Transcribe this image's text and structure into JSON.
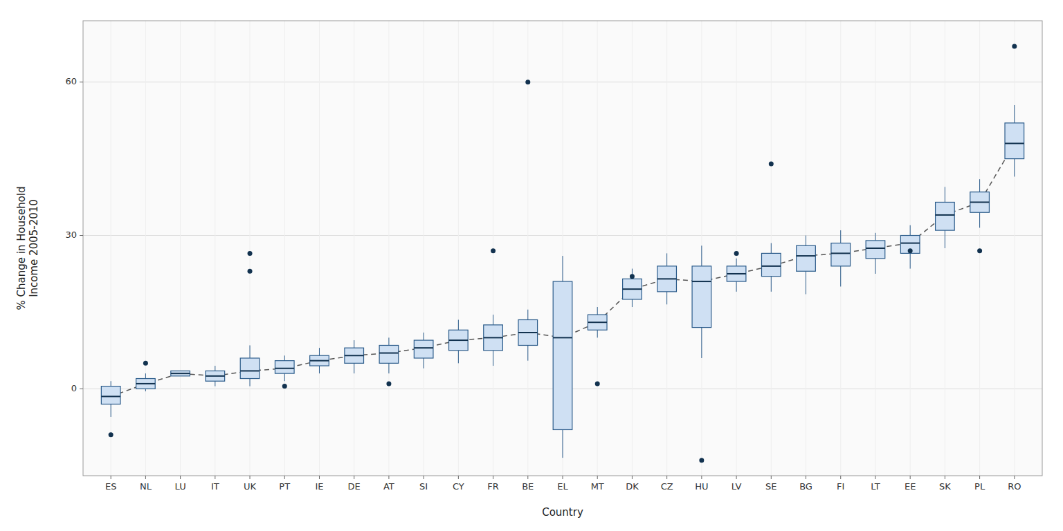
{
  "chart_data": {
    "type": "box",
    "xlabel": "Country",
    "ylabel": "% Change in Household\nIncome 2005-2010",
    "categories": [
      "ES",
      "NL",
      "LU",
      "IT",
      "UK",
      "PT",
      "IE",
      "DE",
      "AT",
      "SI",
      "CY",
      "FR",
      "BE",
      "EL",
      "MT",
      "DK",
      "CZ",
      "HU",
      "LV",
      "SE",
      "BG",
      "FI",
      "LT",
      "EE",
      "SK",
      "PL",
      "RO"
    ],
    "boxes": [
      {
        "q1": -3.0,
        "median": -1.5,
        "q3": 0.5,
        "whisker_low": -5.5,
        "whisker_high": 1.5,
        "outliers": [
          -9.0
        ]
      },
      {
        "q1": 0.0,
        "median": 1.0,
        "q3": 2.0,
        "whisker_low": -0.5,
        "whisker_high": 3.0,
        "outliers": [
          5.0
        ]
      },
      {
        "q1": 2.5,
        "median": 3.0,
        "q3": 3.5,
        "whisker_low": 2.5,
        "whisker_high": 3.5,
        "outliers": []
      },
      {
        "q1": 1.5,
        "median": 2.5,
        "q3": 3.5,
        "whisker_low": 0.5,
        "whisker_high": 4.5,
        "outliers": []
      },
      {
        "q1": 2.0,
        "median": 3.5,
        "q3": 6.0,
        "whisker_low": 0.5,
        "whisker_high": 8.5,
        "outliers": [
          26.5,
          23.0
        ]
      },
      {
        "q1": 3.0,
        "median": 4.0,
        "q3": 5.5,
        "whisker_low": 1.5,
        "whisker_high": 6.5,
        "outliers": [
          0.5
        ]
      },
      {
        "q1": 4.5,
        "median": 5.5,
        "q3": 6.5,
        "whisker_low": 3.0,
        "whisker_high": 8.0,
        "outliers": []
      },
      {
        "q1": 5.0,
        "median": 6.5,
        "q3": 8.0,
        "whisker_low": 3.0,
        "whisker_high": 9.5,
        "outliers": []
      },
      {
        "q1": 5.0,
        "median": 7.0,
        "q3": 8.5,
        "whisker_low": 3.0,
        "whisker_high": 10.0,
        "outliers": [
          1.0
        ]
      },
      {
        "q1": 6.0,
        "median": 8.0,
        "q3": 9.5,
        "whisker_low": 4.0,
        "whisker_high": 11.0,
        "outliers": []
      },
      {
        "q1": 7.5,
        "median": 9.5,
        "q3": 11.5,
        "whisker_low": 5.0,
        "whisker_high": 13.5,
        "outliers": []
      },
      {
        "q1": 7.5,
        "median": 10.0,
        "q3": 12.5,
        "whisker_low": 4.5,
        "whisker_high": 14.5,
        "outliers": [
          27.0
        ]
      },
      {
        "q1": 8.5,
        "median": 11.0,
        "q3": 13.5,
        "whisker_low": 5.5,
        "whisker_high": 15.5,
        "outliers": [
          60.0
        ]
      },
      {
        "q1": -8.0,
        "median": 10.0,
        "q3": 21.0,
        "whisker_low": -13.5,
        "whisker_high": 26.0,
        "outliers": []
      },
      {
        "q1": 11.5,
        "median": 13.0,
        "q3": 14.5,
        "whisker_low": 10.0,
        "whisker_high": 16.0,
        "outliers": [
          1.0
        ]
      },
      {
        "q1": 17.5,
        "median": 19.5,
        "q3": 21.5,
        "whisker_low": 16.0,
        "whisker_high": 23.5,
        "outliers": [
          22.0
        ]
      },
      {
        "q1": 19.0,
        "median": 21.5,
        "q3": 24.0,
        "whisker_low": 16.5,
        "whisker_high": 26.5,
        "outliers": []
      },
      {
        "q1": 12.0,
        "median": 21.0,
        "q3": 24.0,
        "whisker_low": 6.0,
        "whisker_high": 28.0,
        "outliers": [
          -14.0
        ]
      },
      {
        "q1": 21.0,
        "median": 22.5,
        "q3": 24.0,
        "whisker_low": 19.0,
        "whisker_high": 25.5,
        "outliers": [
          26.5
        ]
      },
      {
        "q1": 22.0,
        "median": 24.0,
        "q3": 26.5,
        "whisker_low": 19.0,
        "whisker_high": 28.5,
        "outliers": [
          44.0
        ]
      },
      {
        "q1": 23.0,
        "median": 26.0,
        "q3": 28.0,
        "whisker_low": 18.5,
        "whisker_high": 30.0,
        "outliers": []
      },
      {
        "q1": 24.0,
        "median": 26.5,
        "q3": 28.5,
        "whisker_low": 20.0,
        "whisker_high": 31.0,
        "outliers": []
      },
      {
        "q1": 25.5,
        "median": 27.5,
        "q3": 29.0,
        "whisker_low": 22.5,
        "whisker_high": 30.5,
        "outliers": []
      },
      {
        "q1": 26.5,
        "median": 28.5,
        "q3": 30.0,
        "whisker_low": 23.5,
        "whisker_high": 32.0,
        "outliers": [
          27.0
        ]
      },
      {
        "q1": 31.0,
        "median": 34.0,
        "q3": 36.5,
        "whisker_low": 27.5,
        "whisker_high": 39.5,
        "outliers": []
      },
      {
        "q1": 34.5,
        "median": 36.5,
        "q3": 38.5,
        "whisker_low": 31.5,
        "whisker_high": 41.0,
        "outliers": [
          27.0
        ]
      },
      {
        "q1": 45.0,
        "median": 48.0,
        "q3": 52.0,
        "whisker_low": 41.5,
        "whisker_high": 55.5,
        "outliers": [
          67.0
        ]
      }
    ],
    "median_line": {
      "values": [
        -1.5,
        1.0,
        3.0,
        2.5,
        3.5,
        4.0,
        5.5,
        6.5,
        7.0,
        8.0,
        9.5,
        10.0,
        11.0,
        10.0,
        13.0,
        19.5,
        21.5,
        21.0,
        22.5,
        24.0,
        26.0,
        26.5,
        27.5,
        28.5,
        34.0,
        36.5,
        48.0
      ],
      "line_style": "dashed"
    },
    "ylim": [
      -17,
      72
    ],
    "yticks": [
      0,
      30,
      60
    ],
    "grid": true
  }
}
